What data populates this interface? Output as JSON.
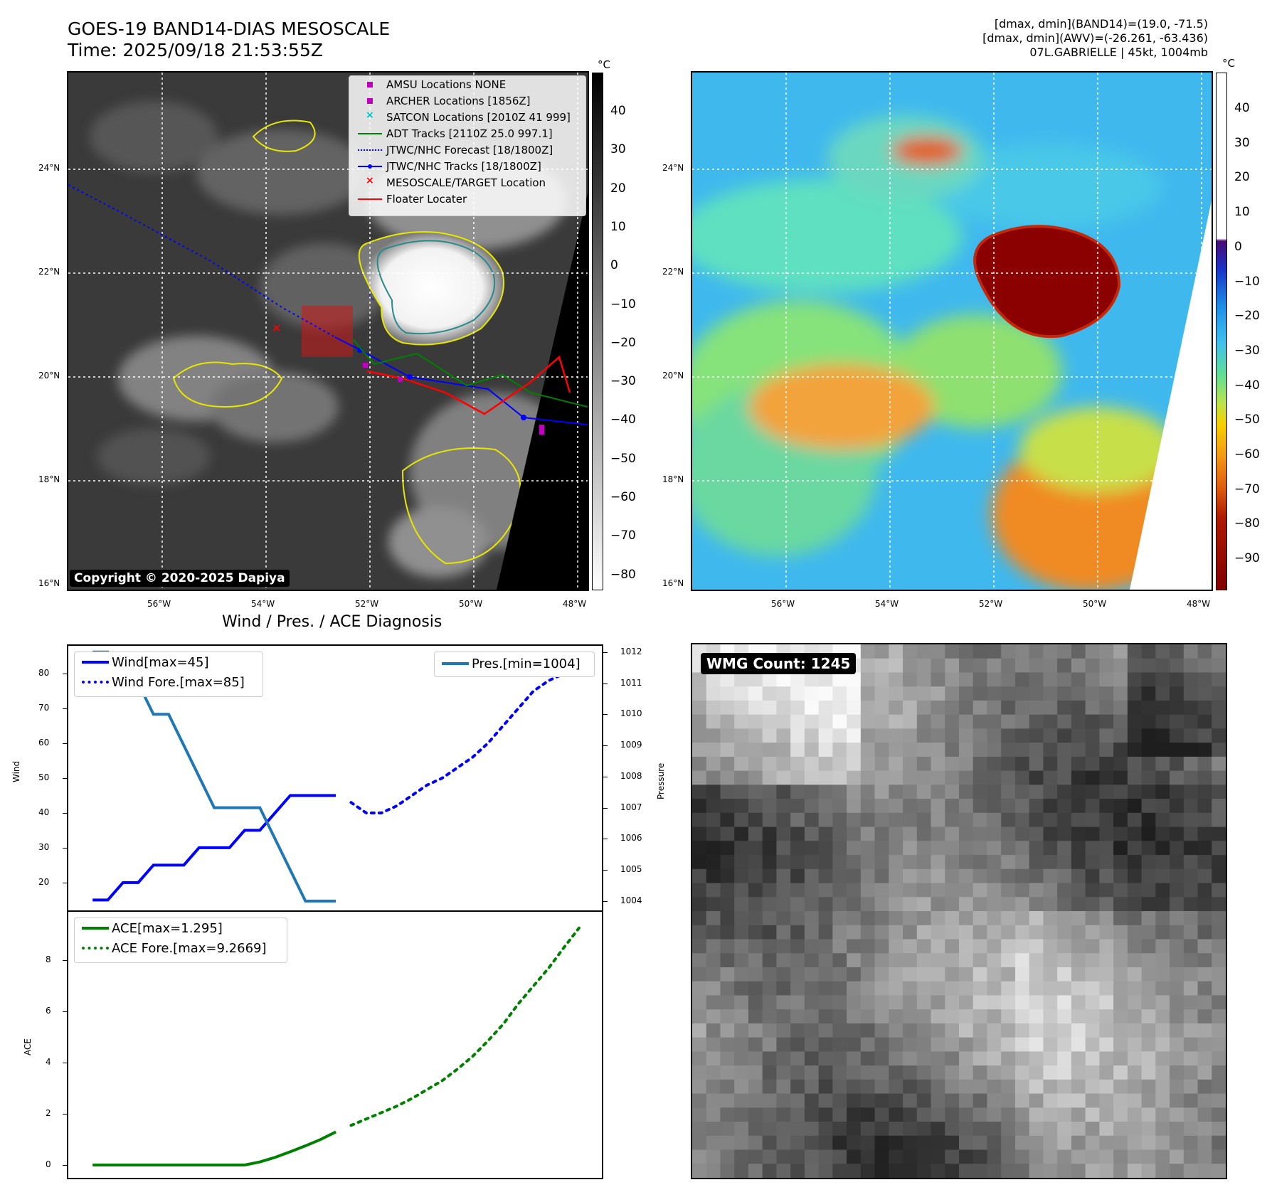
{
  "header": {
    "title_line1": "GOES-19 BAND14-DIAS MESOSCALE",
    "title_line2": "Time: 2025/09/18 21:53:55Z",
    "right_line1": "[dmax, dmin](BAND14)=(19.0, -71.5)",
    "right_line2": "[dmax, dmin](AWV)=(-26.261, -63.436)",
    "right_line3": "07L.GABRIELLE | 45kt, 1004mb"
  },
  "map": {
    "lat_labels": [
      "24°N",
      "22°N",
      "20°N",
      "18°N",
      "16°N"
    ],
    "lon_labels": [
      "56°W",
      "54°W",
      "52°W",
      "50°W",
      "48°W"
    ],
    "copyright": "Copyright © 2020-2025 Dapiya",
    "legend": [
      {
        "label": "AMSU Locations NONE",
        "symbol": "square",
        "color": "#bf00bf"
      },
      {
        "label": "ARCHER Locations [1856Z]",
        "symbol": "square",
        "color": "#bf00bf"
      },
      {
        "label": "SATCON Locations [2010Z 41 999]",
        "symbol": "x",
        "color": "#00bfbf"
      },
      {
        "label": "ADT Tracks [2110Z 25.0 997.1]",
        "symbol": "line",
        "color": "#008000"
      },
      {
        "label": "JTWC/NHC Forecast [18/1800Z]",
        "symbol": "dotted",
        "color": "#0000ff"
      },
      {
        "label": "JTWC/NHC Tracks [18/1800Z]",
        "symbol": "line-dot",
        "color": "#0000ff"
      },
      {
        "label": "MESOSCALE/TARGET Location",
        "symbol": "x",
        "color": "#ff0000"
      },
      {
        "label": "Floater Locater",
        "symbol": "line",
        "color": "#ff0000"
      }
    ]
  },
  "colorbar_gray": {
    "unit": "°C",
    "ticks": [
      "40",
      "30",
      "20",
      "10",
      "0",
      "−10",
      "−20",
      "−30",
      "−40",
      "−50",
      "−60",
      "−70",
      "−80"
    ]
  },
  "colorbar_color": {
    "unit": "°C",
    "ticks": [
      "40",
      "30",
      "20",
      "10",
      "0",
      "−10",
      "−20",
      "−30",
      "−40",
      "−50",
      "−60",
      "−70",
      "−80",
      "−90"
    ]
  },
  "diagnosis": {
    "title": "Wind / Pres. / ACE Diagnosis",
    "wind_ylabel": "Wind",
    "pres_ylabel": "Pressure",
    "ace_ylabel": "ACE",
    "wind_ticks": [
      "80",
      "70",
      "60",
      "50",
      "40",
      "30",
      "20"
    ],
    "pres_ticks": [
      "1012",
      "1011",
      "1010",
      "1009",
      "1008",
      "1007",
      "1006",
      "1005",
      "1004"
    ],
    "ace_ticks": [
      "8",
      "6",
      "4",
      "2",
      "0"
    ],
    "legend_wind": "Wind[max=45]",
    "legend_wind_fore": "Wind Fore.[max=85]",
    "legend_pres": "Pres.[min=1004]",
    "legend_ace": "ACE[max=1.295]",
    "legend_ace_fore": "ACE Fore.[max=9.2669]"
  },
  "wmg": {
    "label": "WMG Count: 1245"
  },
  "chart_data": [
    {
      "type": "line",
      "title": "Wind / Pres. / ACE Diagnosis",
      "ylabel": "Wind",
      "ylim": [
        12,
        88
      ],
      "series": [
        {
          "name": "Wind[max=45]",
          "color": "#0000ff",
          "x": [
            0,
            1,
            2,
            3,
            4,
            5,
            6,
            7,
            8,
            9,
            10,
            11,
            12,
            13,
            14,
            15,
            16
          ],
          "values": [
            15,
            15,
            20,
            20,
            25,
            25,
            25,
            30,
            30,
            30,
            35,
            35,
            40,
            45,
            45,
            45,
            45
          ]
        },
        {
          "name": "Wind Fore.[max=85]",
          "color": "#0000ff",
          "style": "dotted",
          "x": [
            17,
            18,
            19,
            20,
            21,
            22,
            23,
            24,
            25,
            26,
            27,
            28,
            29,
            30,
            31,
            32
          ],
          "values": [
            43,
            40,
            40,
            42,
            45,
            48,
            50,
            53,
            56,
            60,
            65,
            70,
            75,
            78,
            80,
            85
          ]
        }
      ]
    },
    {
      "type": "line",
      "ylabel": "Pressure",
      "ylim": [
        1003.7,
        1012.2
      ],
      "series": [
        {
          "name": "Pres.[min=1004]",
          "color": "#1f77b4",
          "x": [
            0,
            1,
            2,
            3,
            4,
            5,
            6,
            7,
            8,
            9,
            10,
            11,
            12,
            13,
            14,
            15,
            16
          ],
          "values": [
            1012,
            1012,
            1011,
            1011,
            1010,
            1010,
            1009,
            1008,
            1007,
            1007,
            1007,
            1007,
            1006,
            1005,
            1004,
            1004,
            1004
          ]
        }
      ]
    },
    {
      "type": "line",
      "ylabel": "ACE",
      "ylim": [
        -0.5,
        9.9
      ],
      "series": [
        {
          "name": "ACE[max=1.295]",
          "color": "#008000",
          "x": [
            0,
            1,
            2,
            3,
            4,
            5,
            6,
            7,
            8,
            9,
            10,
            11,
            12,
            13,
            14,
            15,
            16
          ],
          "values": [
            0,
            0,
            0,
            0,
            0,
            0,
            0,
            0,
            0,
            0,
            0,
            0.12,
            0.3,
            0.52,
            0.75,
            1.0,
            1.295
          ]
        },
        {
          "name": "ACE Fore.[max=9.2669]",
          "color": "#008000",
          "style": "dotted",
          "x": [
            17,
            18,
            19,
            20,
            21,
            22,
            23,
            24,
            25,
            26,
            27,
            28,
            29,
            30,
            31,
            32
          ],
          "values": [
            1.55,
            1.8,
            2.05,
            2.3,
            2.6,
            2.95,
            3.3,
            3.75,
            4.25,
            4.85,
            5.5,
            6.3,
            7.0,
            7.7,
            8.5,
            9.2669
          ]
        }
      ]
    }
  ]
}
